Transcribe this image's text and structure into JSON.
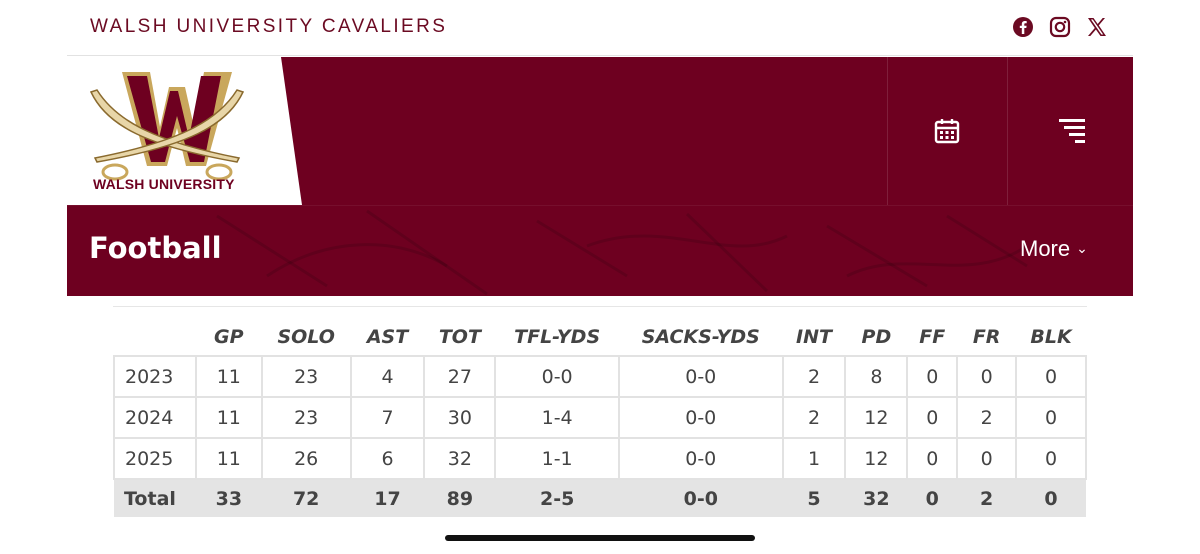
{
  "site": {
    "name": "WALSH UNIVERSITY CAVALIERS"
  },
  "social": [
    "facebook-icon",
    "instagram-icon",
    "x-icon"
  ],
  "logo": {
    "text": "WALSH UNIVERSITY"
  },
  "header": {
    "sport_title": "Football",
    "more_label": "More",
    "icons": [
      "calendar-icon",
      "menu-icon"
    ]
  },
  "colors": {
    "brand": "#6e0020",
    "gold": "#c9a75c",
    "total_row_bg": "#e4e4e4"
  },
  "stats": {
    "columns": [
      "",
      "GP",
      "SOLO",
      "AST",
      "TOT",
      "TFL-YDS",
      "SACKS-YDS",
      "INT",
      "PD",
      "FF",
      "FR",
      "BLK"
    ],
    "rows": [
      [
        "2023",
        "11",
        "23",
        "4",
        "27",
        "0-0",
        "0-0",
        "2",
        "8",
        "0",
        "0",
        "0"
      ],
      [
        "2024",
        "11",
        "23",
        "7",
        "30",
        "1-4",
        "0-0",
        "2",
        "12",
        "0",
        "2",
        "0"
      ],
      [
        "2025",
        "11",
        "26",
        "6",
        "32",
        "1-1",
        "0-0",
        "1",
        "12",
        "0",
        "0",
        "0"
      ]
    ],
    "total": [
      "Total",
      "33",
      "72",
      "17",
      "89",
      "2-5",
      "0-0",
      "5",
      "32",
      "0",
      "2",
      "0"
    ]
  }
}
